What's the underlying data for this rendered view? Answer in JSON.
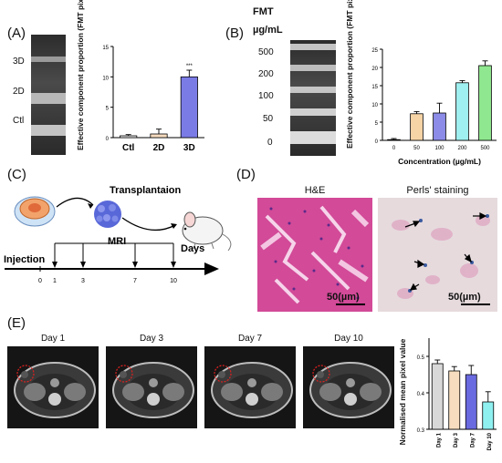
{
  "panels": {
    "A": {
      "label": "(A)",
      "gel_labels": [
        "3D",
        "2D",
        "Ctl"
      ],
      "chart_data": {
        "type": "bar",
        "categories": [
          "Ctl",
          "2D",
          "3D"
        ],
        "values": [
          0.3,
          0.6,
          10.0
        ],
        "errors": [
          0.2,
          0.8,
          1.1
        ],
        "colors": [
          "#f5f5f5",
          "#f7dcbf",
          "#7b7be6"
        ],
        "significance": [
          "",
          "",
          "***"
        ],
        "ylabel": "Effective component proportion (FMT pixel/Total pixel)",
        "xlabel": "",
        "ylim": [
          0,
          15
        ],
        "yticks": [
          "0",
          "5",
          "10",
          "15"
        ]
      }
    },
    "B": {
      "label": "(B)",
      "gel_header": [
        "FMT",
        "µg/mL"
      ],
      "gel_labels": [
        "500",
        "200",
        "100",
        "50",
        "0"
      ],
      "chart_data": {
        "type": "bar",
        "categories": [
          "0",
          "50",
          "100",
          "200",
          "500"
        ],
        "values": [
          0.2,
          7.3,
          7.5,
          15.8,
          20.5
        ],
        "errors": [
          0.3,
          0.6,
          2.7,
          0.6,
          1.3
        ],
        "colors": [
          "#fbeae0",
          "#f6d4a6",
          "#8c8ce8",
          "#9ff0f0",
          "#8fe88f"
        ],
        "ylabel": "Effective component proportion (FMT pixel/Total pixel)",
        "xlabel": "Concentration (µg/mL)",
        "ylim": [
          0,
          25
        ],
        "yticks": [
          "0",
          "5",
          "10",
          "15",
          "20",
          "25"
        ]
      }
    },
    "C": {
      "label": "(C)",
      "transplant_label": "Transplantaion",
      "mri_label": "MRI",
      "injection_label": "Injection",
      "days_label": "Days",
      "timeline_ticks": [
        "0",
        "1",
        "3",
        "7",
        "10"
      ]
    },
    "D": {
      "label": "(D)",
      "he_title": "H&E",
      "perls_title": "Perls' staining",
      "scale_bar": "50(µm)"
    },
    "E": {
      "label": "(E)",
      "mri_days": [
        "Day 1",
        "Day 3",
        "Day 7",
        "Day 10"
      ],
      "chart_data": {
        "type": "bar",
        "categories": [
          "Day 1",
          "Day 3",
          "Day 7",
          "Day 10"
        ],
        "values": [
          0.48,
          0.46,
          0.45,
          0.375
        ],
        "errors": [
          0.01,
          0.012,
          0.025,
          0.028
        ],
        "colors": [
          "#d8d8d8",
          "#f7dcbf",
          "#6a6ae0",
          "#8ff0f0"
        ],
        "ylabel": "Normalised mean pixel value",
        "xlabel": "",
        "ylim": [
          0.3,
          0.55
        ],
        "yticks": [
          "0.3",
          "0.4",
          "0.5"
        ]
      }
    }
  }
}
